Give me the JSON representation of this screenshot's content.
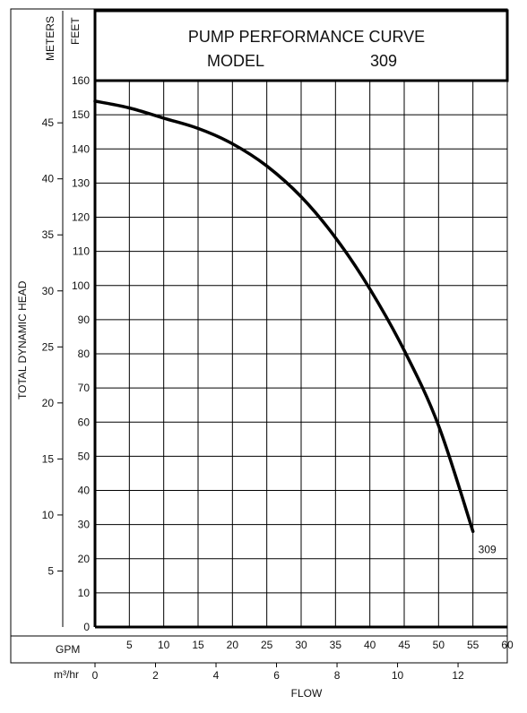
{
  "chart_data": {
    "type": "line",
    "title": "PUMP PERFORMANCE CURVE",
    "subtitle_label": "MODEL",
    "model": "309",
    "left_units": {
      "meters": "METERS",
      "feet": "FEET"
    },
    "ylabel": "TOTAL DYNAMIC HEAD",
    "xlabel": "FLOW",
    "gpm_label": "GPM",
    "m3hr_label": "m³/hr",
    "xlim": [
      0,
      60
    ],
    "ylim_feet": [
      0,
      160
    ],
    "ylim_meters": [
      0,
      48.77
    ],
    "gpm_ticks": [
      "5",
      "10",
      "15",
      "20",
      "25",
      "30",
      "35",
      "40",
      "45",
      "50",
      "55",
      "60"
    ],
    "m3hr_ticks": [
      "0",
      "2",
      "4",
      "6",
      "8",
      "10",
      "12"
    ],
    "feet_ticks": [
      "0",
      "10",
      "20",
      "30",
      "40",
      "50",
      "60",
      "70",
      "80",
      "90",
      "100",
      "110",
      "120",
      "130",
      "140",
      "150",
      "160"
    ],
    "meter_ticks": [
      "5",
      "10",
      "15",
      "20",
      "25",
      "30",
      "35",
      "40",
      "45"
    ],
    "grid": true,
    "series": [
      {
        "name": "309",
        "x": [
          0,
          5,
          10,
          15,
          20,
          25,
          30,
          35,
          40,
          45,
          50,
          55
        ],
        "y": [
          154,
          152,
          149,
          146,
          141.5,
          135,
          126,
          114,
          99,
          81,
          59,
          28
        ]
      }
    ]
  }
}
